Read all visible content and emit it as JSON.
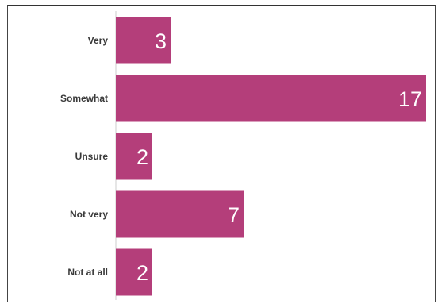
{
  "chart_data": {
    "type": "bar",
    "orientation": "horizontal",
    "categories": [
      "Very",
      "Somewhat",
      "Unsure",
      "Not very",
      "Not at all"
    ],
    "values": [
      3,
      17,
      2,
      7,
      2
    ],
    "xlim": [
      0,
      17
    ],
    "bar_color": "#b43e7a",
    "value_label_color": "#ffffff",
    "grid": false,
    "legend": "none"
  }
}
